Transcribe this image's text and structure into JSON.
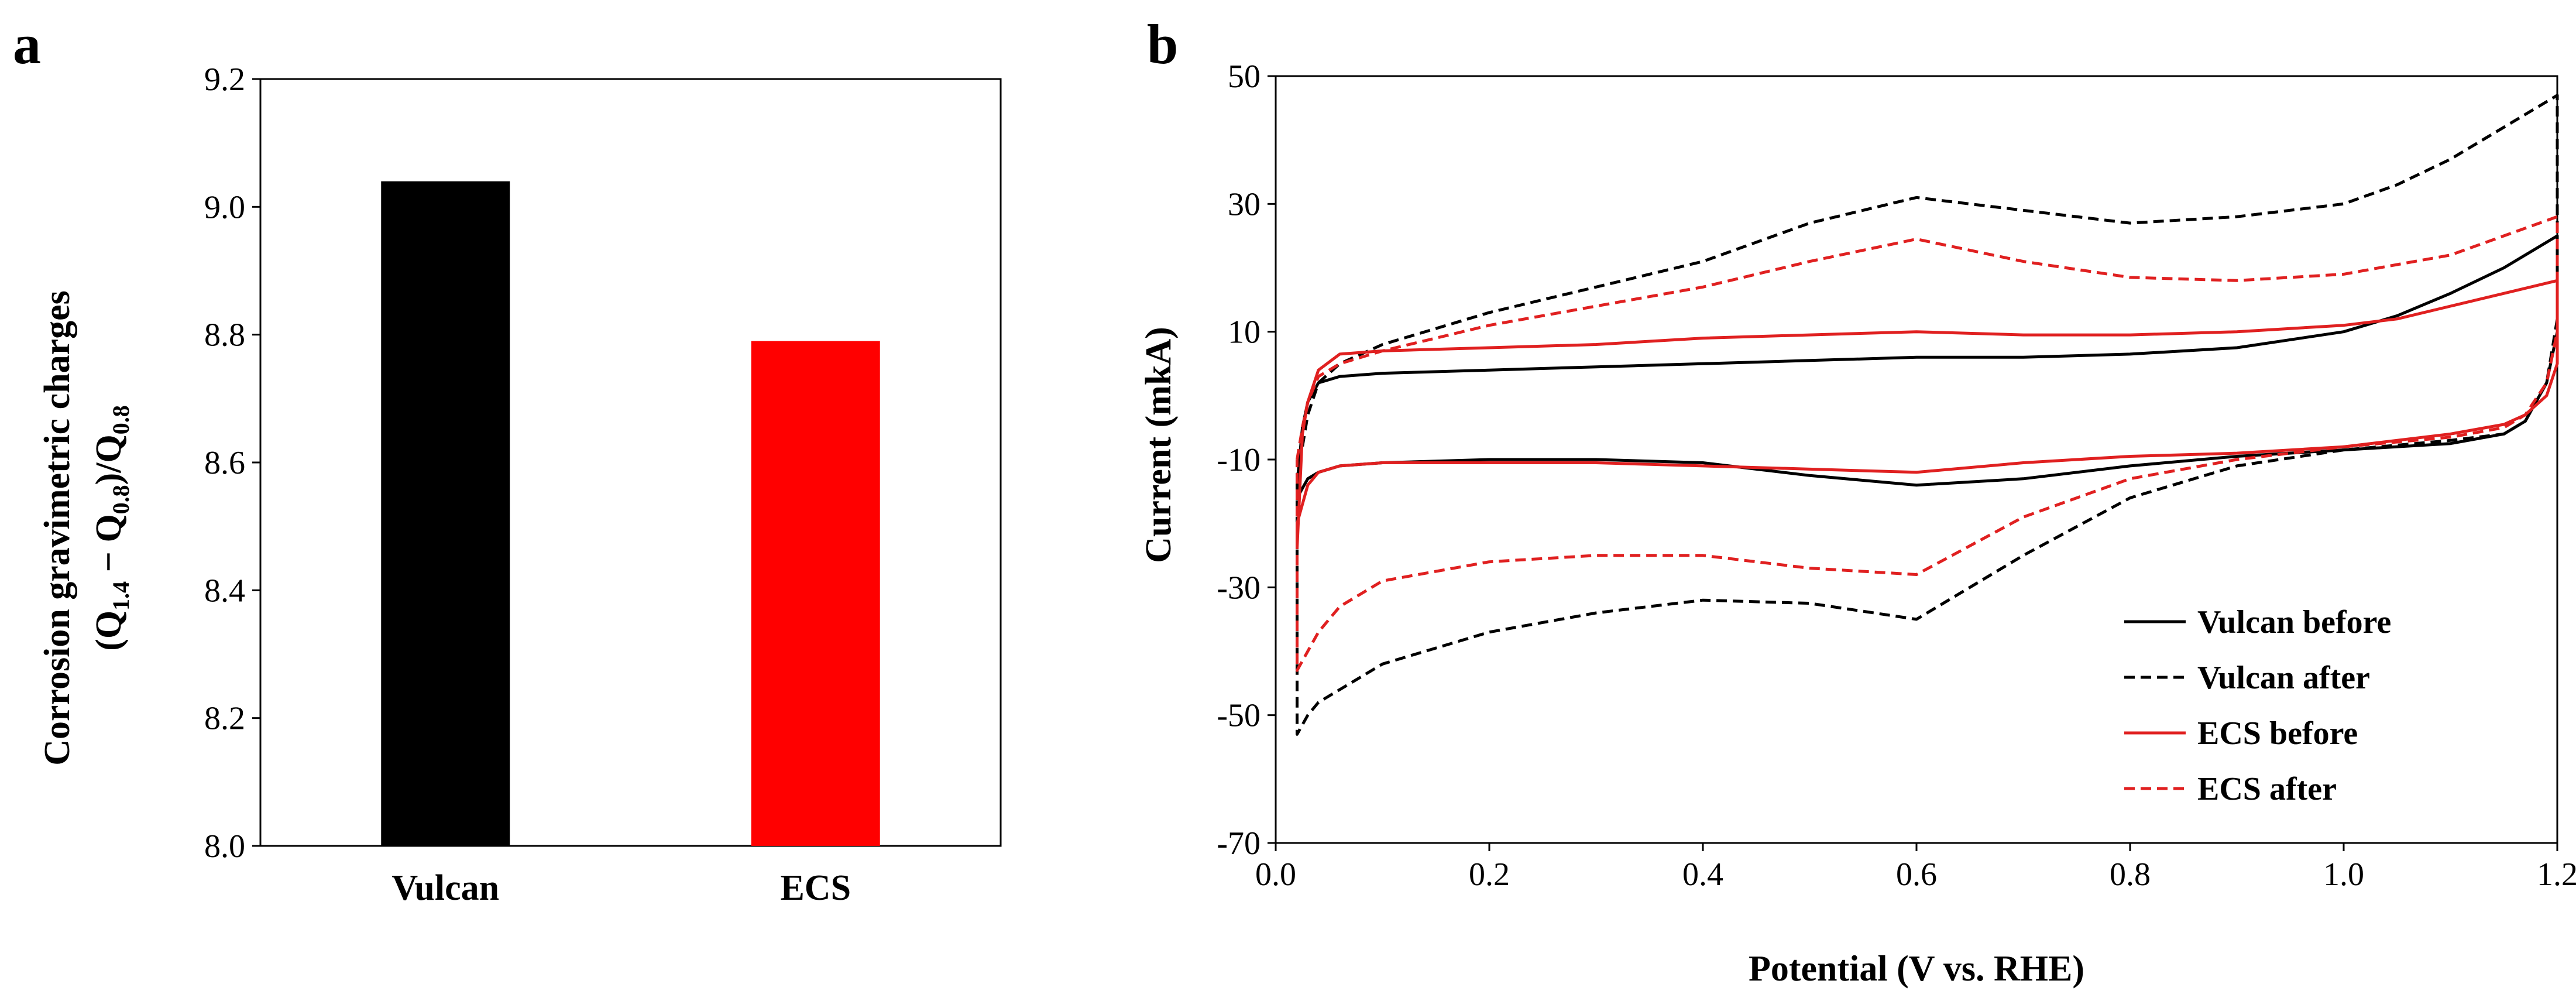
{
  "chart_data": [
    {
      "panel": "a",
      "type": "bar",
      "categories": [
        "Vulcan",
        "ECS"
      ],
      "values": [
        9.04,
        8.79
      ],
      "colors": [
        "#000000",
        "#ff0000"
      ],
      "ylim": [
        8.0,
        9.2
      ],
      "yticks": [
        "8.0",
        "8.2",
        "8.4",
        "8.6",
        "8.8",
        "9.0",
        "9.2"
      ],
      "ylabel_line1": "Corrosion gravimetric charges",
      "ylabel_line2": {
        "p1": "(Q",
        "s1": "1.4",
        "p2": " − Q",
        "s2": "0.8",
        "p3": ")/Q",
        "s3": "0.8"
      },
      "xlabel": "",
      "grid": false
    },
    {
      "panel": "b",
      "type": "line",
      "xlabel": "Potential (V vs. RHE)",
      "ylabel": "Current  (mkA)",
      "xlim": [
        0.0,
        1.2
      ],
      "ylim": [
        -70,
        50
      ],
      "xticks": [
        "0.0",
        "0.2",
        "0.4",
        "0.6",
        "0.8",
        "1.0",
        "1.2"
      ],
      "yticks": [
        "50",
        "30",
        "10",
        "-10",
        "-30",
        "-50",
        "-70"
      ],
      "legend_position": "bottom-right",
      "series": [
        {
          "name": "Vulcan before",
          "color": "#000000",
          "dash": "solid",
          "x": [
            0.02,
            0.025,
            0.03,
            0.04,
            0.06,
            0.1,
            0.2,
            0.3,
            0.4,
            0.5,
            0.6,
            0.7,
            0.8,
            0.9,
            1.0,
            1.05,
            1.1,
            1.15,
            1.2,
            1.2,
            1.19,
            1.17,
            1.15,
            1.1,
            1.0,
            0.9,
            0.8,
            0.7,
            0.6,
            0.5,
            0.4,
            0.3,
            0.2,
            0.1,
            0.06,
            0.04,
            0.03,
            0.02,
            0.02
          ],
          "y": [
            -14,
            -5,
            -1,
            2,
            3,
            3.5,
            4,
            4.5,
            5,
            5.5,
            6,
            6,
            6.5,
            7.5,
            10,
            12.5,
            16,
            20,
            25,
            10,
            2,
            -4,
            -6,
            -7.5,
            -8.5,
            -9.5,
            -11,
            -13,
            -14,
            -12.5,
            -10.5,
            -10,
            -10,
            -10.5,
            -11,
            -12,
            -13,
            -16,
            -14
          ]
        },
        {
          "name": "Vulcan after",
          "color": "#000000",
          "dash": "dashed",
          "x": [
            0.02,
            0.025,
            0.03,
            0.04,
            0.06,
            0.1,
            0.2,
            0.3,
            0.4,
            0.5,
            0.6,
            0.7,
            0.8,
            0.9,
            1.0,
            1.05,
            1.1,
            1.15,
            1.2,
            1.2,
            1.19,
            1.17,
            1.15,
            1.1,
            1.0,
            0.9,
            0.8,
            0.7,
            0.6,
            0.5,
            0.4,
            0.3,
            0.2,
            0.1,
            0.06,
            0.04,
            0.03,
            0.02,
            0.02
          ],
          "y": [
            -13,
            -8,
            -3,
            2,
            5,
            8,
            13,
            17,
            21,
            27,
            31,
            29,
            27,
            28,
            30,
            33,
            37,
            42,
            47,
            12,
            2,
            -4,
            -6,
            -7,
            -8.5,
            -11,
            -16,
            -25,
            -35,
            -32.5,
            -32,
            -34,
            -37,
            -42,
            -46,
            -48,
            -50,
            -53,
            -13
          ]
        },
        {
          "name": "ECS before",
          "color": "#e02020",
          "dash": "solid",
          "x": [
            0.02,
            0.025,
            0.03,
            0.04,
            0.06,
            0.1,
            0.2,
            0.3,
            0.4,
            0.5,
            0.6,
            0.7,
            0.8,
            0.9,
            1.0,
            1.05,
            1.1,
            1.15,
            1.2,
            1.2,
            1.19,
            1.17,
            1.15,
            1.1,
            1.0,
            0.9,
            0.8,
            0.7,
            0.6,
            0.5,
            0.4,
            0.3,
            0.2,
            0.1,
            0.06,
            0.04,
            0.03,
            0.02,
            0.02
          ],
          "y": [
            -24,
            -6,
            -1,
            4,
            6.5,
            7,
            7.5,
            8,
            9,
            9.5,
            10,
            9.5,
            9.5,
            10,
            11,
            12,
            14,
            16,
            18,
            5,
            0,
            -3,
            -4.5,
            -6,
            -8,
            -9,
            -9.5,
            -10.5,
            -12,
            -11.5,
            -11,
            -10.5,
            -10.5,
            -10.5,
            -11,
            -12,
            -14,
            -20,
            -24
          ]
        },
        {
          "name": "ECS after",
          "color": "#e02020",
          "dash": "dashed",
          "x": [
            0.02,
            0.025,
            0.03,
            0.04,
            0.06,
            0.1,
            0.2,
            0.3,
            0.4,
            0.5,
            0.6,
            0.7,
            0.8,
            0.9,
            1.0,
            1.05,
            1.1,
            1.15,
            1.2,
            1.2,
            1.19,
            1.17,
            1.15,
            1.1,
            1.0,
            0.9,
            0.8,
            0.7,
            0.6,
            0.5,
            0.4,
            0.3,
            0.2,
            0.1,
            0.06,
            0.04,
            0.03,
            0.02,
            0.02
          ],
          "y": [
            -10,
            -5,
            -1,
            3,
            5,
            7,
            11,
            14,
            17,
            21,
            24.5,
            21,
            18.5,
            18,
            19,
            20.5,
            22,
            25,
            28,
            10,
            2,
            -3,
            -5,
            -6.5,
            -8,
            -10,
            -13,
            -19,
            -28,
            -27,
            -25,
            -25,
            -26,
            -29,
            -33,
            -37,
            -40,
            -43,
            -10
          ]
        }
      ]
    }
  ]
}
